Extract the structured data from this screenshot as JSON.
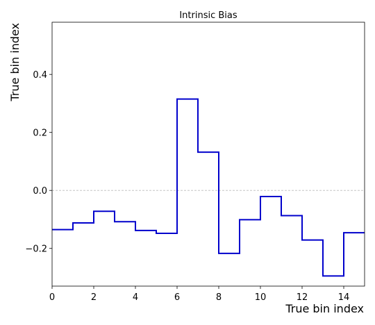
{
  "chart_data": {
    "type": "line",
    "step": "post",
    "title": "Intrinsic Bias",
    "xlabel": "True bin index",
    "ylabel": "True bin index",
    "xlim": [
      0,
      15
    ],
    "ylim": [
      -0.33,
      0.58
    ],
    "xticks": [
      0,
      2,
      4,
      6,
      8,
      10,
      12,
      14
    ],
    "xtick_labels": [
      "0",
      "2",
      "4",
      "6",
      "8",
      "10",
      "12",
      "14"
    ],
    "yticks": [
      -0.2,
      0.0,
      0.2,
      0.4
    ],
    "ytick_labels": [
      "−0.2",
      "0.0",
      "0.2",
      "0.4"
    ],
    "reference_line": {
      "y": 0.0,
      "style": "dashed",
      "color": "#bbbbbb"
    },
    "series": [
      {
        "color": "#0000cc",
        "x": [
          0,
          1,
          2,
          3,
          4,
          5,
          6,
          7,
          8,
          9,
          10,
          11,
          12,
          13,
          14,
          15
        ],
        "values": [
          -0.135,
          -0.112,
          -0.072,
          -0.108,
          -0.138,
          -0.148,
          0.315,
          0.132,
          -0.217,
          -0.101,
          -0.021,
          -0.087,
          -0.171,
          -0.295,
          -0.146,
          -0.146
        ]
      }
    ]
  }
}
